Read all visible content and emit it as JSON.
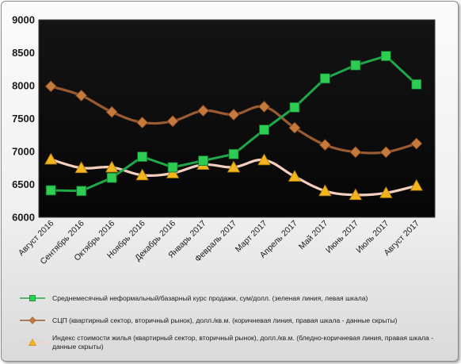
{
  "chart_data": {
    "type": "line",
    "categories": [
      "Август 2016",
      "Сентябрь 2016",
      "Октябрь 2016",
      "Ноябрь 2016",
      "Декабрь 2016",
      "Январь 2017",
      "Февраль 2017",
      "Март 2017",
      "Апрель 2017",
      "Май 2017",
      "Июнь 2017",
      "Июль 2017",
      "Август 2017"
    ],
    "ylim": [
      6000,
      9000
    ],
    "yticks": [
      "6000",
      "6500",
      "7000",
      "7500",
      "8000",
      "8500",
      "9000"
    ],
    "grid": false,
    "legend_position": "bottom",
    "series": [
      {
        "name": "Среднемесячный неформальный/базарный курс продажи,  сум/долл. (зеленая линия, левая шкала)",
        "legend_lines": [
          "Среднемесячный неформальный/базарный курс продажи,  сум/долл. (зеленая линия, левая шкала)"
        ],
        "marker": "square",
        "color": "#1ea84a",
        "marker_color": "#2ecc52",
        "values": [
          6410,
          6400,
          6600,
          6920,
          6760,
          6860,
          6960,
          7330,
          7670,
          8110,
          8310,
          8450,
          8020
        ]
      },
      {
        "name": "СЦП (квартирный сектор, вторичный рынок),  долл./кв.м. (коричневая линия, правая шкала - данные скрыты)",
        "legend_lines": [
          "СЦП (квартирный сектор, вторичный рынок),  долл./кв.м. (коричневая линия, правая шкала - данные скрыты)"
        ],
        "marker": "diamond",
        "color": "#9a5a32",
        "marker_color": "#c47a3c",
        "values": [
          7990,
          7850,
          7600,
          7440,
          7460,
          7620,
          7560,
          7680,
          7360,
          7100,
          6990,
          6990,
          7120
        ]
      },
      {
        "name": "Индекс стоимости жилья (квартирный сектор, вторичный рынок),  долл./кв.м.  (бледно-коричневая линия, правая шкала - данные скрыты)",
        "legend_lines": [
          "Индекс стоимости жилья (квартирный сектор, вторичный рынок),  долл./кв.м.  (бледно-коричневая линия, правая шкала -",
          "данные скрыты)"
        ],
        "marker": "triangle",
        "color": "#f4cfc0",
        "marker_color": "#f2b51e",
        "values": [
          6880,
          6750,
          6760,
          6640,
          6670,
          6800,
          6760,
          6870,
          6620,
          6400,
          6340,
          6370,
          6480
        ]
      }
    ]
  }
}
